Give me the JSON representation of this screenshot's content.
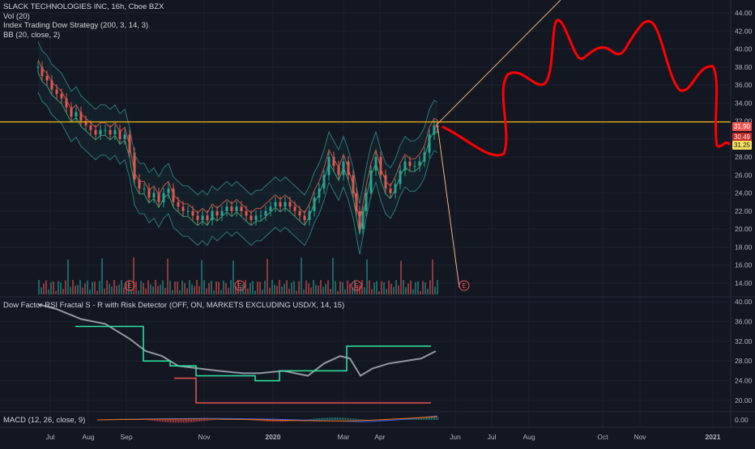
{
  "legend": {
    "main": [
      "SLACK TECHNOLOGIES INC, 16h, Cboe BZX",
      "Vol (20)",
      "Index Trading Dow Strategy (200, 3, 14, 3)",
      "BB (20, close, 2)"
    ],
    "dow": "Dow Factor RSI Fractal S - R with Risk Detector (OFF, ON, MARKETS EXCLUDING USD/X, 14, 15)",
    "macd": "MACD (12, 26, close, 9)"
  },
  "price_axis": [
    "44.00",
    "42.00",
    "40.00",
    "38.00",
    "36.00",
    "34.00",
    "32.00",
    "30.00",
    "28.00",
    "26.00",
    "24.00",
    "22.00",
    "20.00",
    "18.00",
    "16.00",
    "14.00"
  ],
  "dow_axis": [
    "40.00",
    "36.00",
    "32.00",
    "28.00",
    "24.00",
    "20.00"
  ],
  "macd_axis": [
    "0.00"
  ],
  "time_axis": [
    "Jul",
    "Aug",
    "Sep",
    "Nov",
    "2020",
    "Mar",
    "Apr",
    "Jun",
    "Jul",
    "Aug",
    "Oct",
    "Nov",
    "2021"
  ],
  "tags": {
    "resistance": "31.90",
    "candle": "30.49",
    "last": "31.25"
  },
  "earnings_markers": [
    "E",
    "E",
    "E",
    "E"
  ],
  "colors": {
    "bg": "#131722",
    "up": "#26a69a",
    "down": "#ef5350",
    "resistance": "#f0b90b",
    "drawing": "#ff0000",
    "trendline": "#f4b37a",
    "rsi": "#9598a1",
    "dow_green": "#2ee8a5",
    "dow_red": "#ef5350"
  },
  "chart_data": {
    "type": "line",
    "title": "SLACK TECHNOLOGIES INC, 16h, Cboe BZX",
    "x": [
      "Jul",
      "Aug",
      "Sep",
      "Nov",
      "2020",
      "Mar",
      "Apr",
      "Jun"
    ],
    "series": [
      {
        "name": "SLACK TECHNOLOGIES INC",
        "values": [
          38.0,
          32.0,
          31.0,
          21.5,
          21.0,
          26.0,
          27.0,
          31.3
        ]
      }
    ],
    "ylim": [
      13,
      45
    ],
    "resistance": 31.9
  }
}
